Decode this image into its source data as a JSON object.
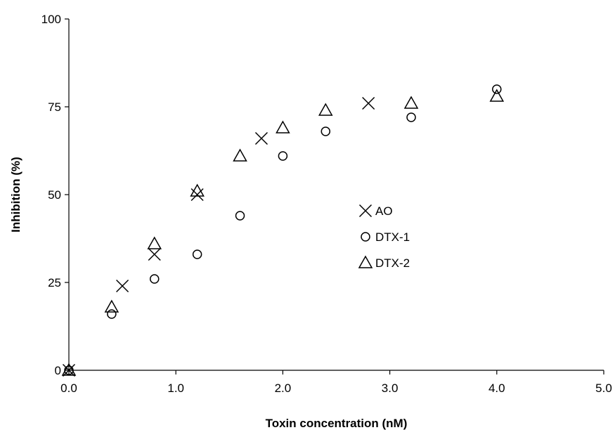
{
  "chart_data": {
    "type": "scatter",
    "title": "",
    "xlabel": "Toxin concentration (nM)",
    "ylabel": "Inhibition (%)",
    "xlim": [
      0,
      5
    ],
    "ylim": [
      0,
      100
    ],
    "xticks": [
      0,
      1,
      2,
      3,
      4,
      5
    ],
    "xtick_labels": [
      "0.0",
      "1.0",
      "2.0",
      "3.0",
      "4.0",
      "5.0"
    ],
    "yticks": [
      0,
      25,
      50,
      75,
      100
    ],
    "ytick_labels": [
      "0",
      "25",
      "50",
      "75",
      "100"
    ],
    "grid": false,
    "legend_position": "center",
    "series": [
      {
        "name": "AO",
        "marker": "x",
        "color": "#000000",
        "x": [
          0,
          0.5,
          0.8,
          1.2,
          1.8,
          2.8
        ],
        "y": [
          0,
          24,
          33,
          50,
          66,
          76
        ]
      },
      {
        "name": "DTX-1",
        "marker": "circle",
        "color": "#000000",
        "x": [
          0,
          0.4,
          0.8,
          1.2,
          1.6,
          2.0,
          2.4,
          3.2,
          4.0
        ],
        "y": [
          0,
          16,
          26,
          33,
          44,
          61,
          68,
          72,
          80
        ]
      },
      {
        "name": "DTX-2",
        "marker": "triangle",
        "color": "#000000",
        "x": [
          0,
          0.4,
          0.8,
          1.2,
          1.6,
          2.0,
          2.4,
          3.2,
          4.0
        ],
        "y": [
          0,
          18,
          36,
          51,
          61,
          69,
          74,
          76,
          78
        ]
      }
    ]
  }
}
